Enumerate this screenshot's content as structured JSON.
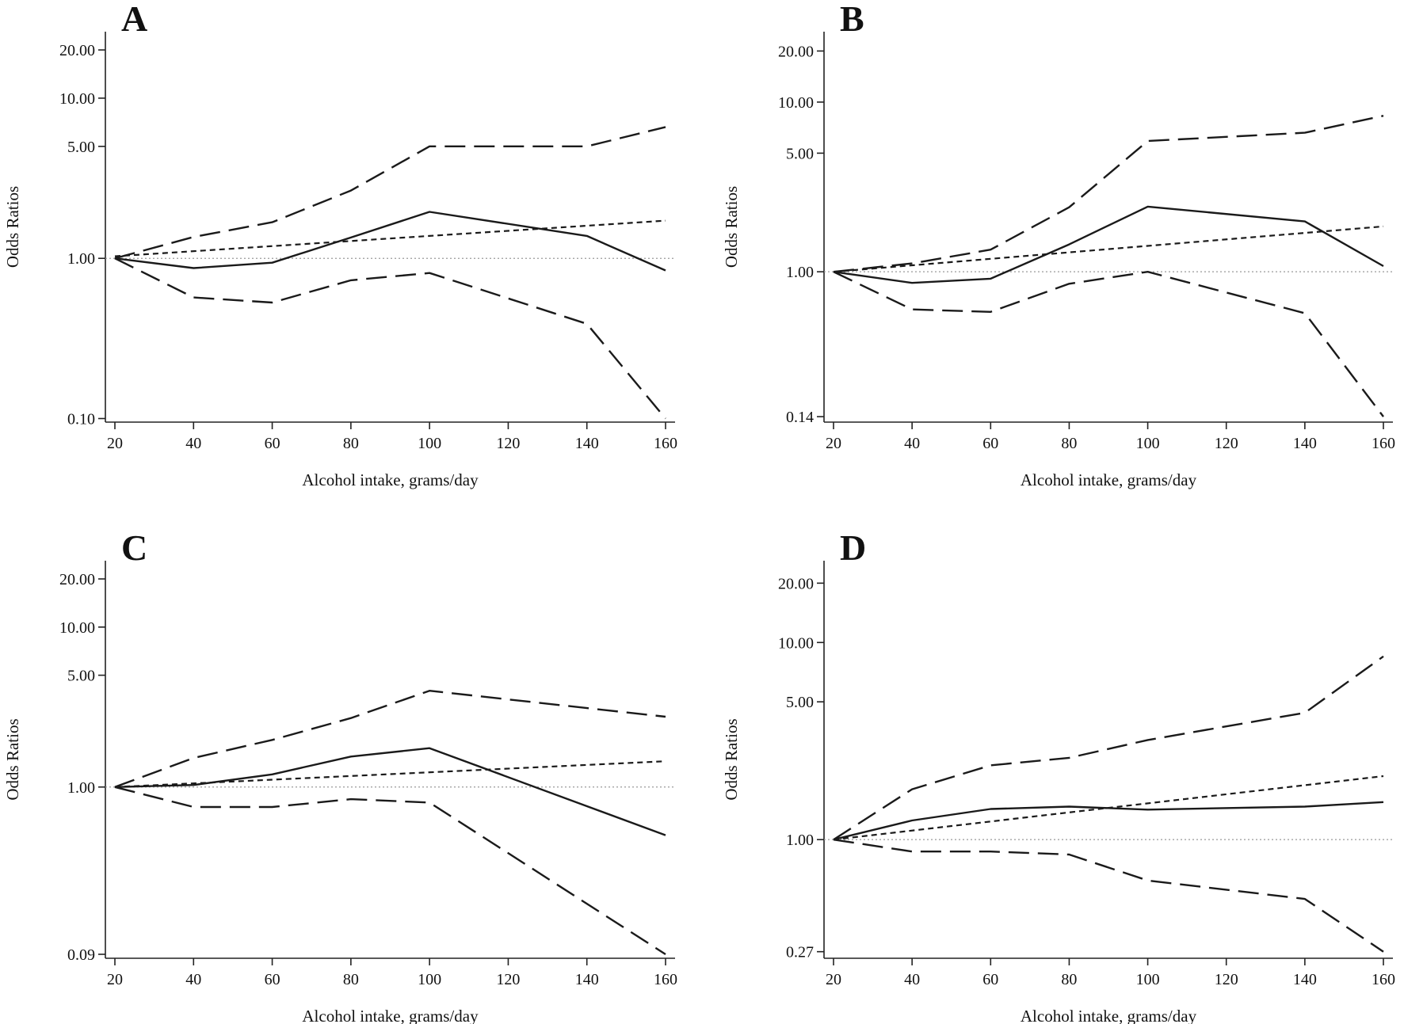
{
  "chart_data": [
    {
      "type": "line",
      "title": "A",
      "xlabel": "Alcohol intake, grams/day",
      "ylabel": "Odds Ratios",
      "y_scale": "log",
      "xlim": [
        20,
        160
      ],
      "ylim": [
        0.095,
        26
      ],
      "x_ticks": [
        20,
        40,
        60,
        80,
        100,
        120,
        140,
        160
      ],
      "y_ticks": [
        0.1,
        1,
        5,
        10,
        20
      ],
      "y_tick_labels": [
        "0.10",
        "1.00",
        "5.00",
        "10.00",
        "20.00"
      ],
      "reference_line": 1.0,
      "series": [
        {
          "style": "solid",
          "x": [
            20,
            40,
            60,
            80,
            100,
            140,
            160
          ],
          "y": [
            1.0,
            0.87,
            0.94,
            1.35,
            1.95,
            1.38,
            0.84
          ]
        },
        {
          "style": "long-dash",
          "x": [
            20,
            40,
            60,
            80,
            100,
            140,
            160
          ],
          "y": [
            1.0,
            1.36,
            1.68,
            2.65,
            5.0,
            5.0,
            6.6
          ]
        },
        {
          "style": "long-dash",
          "x": [
            20,
            40,
            60,
            80,
            100,
            140,
            160
          ],
          "y": [
            1.0,
            0.57,
            0.53,
            0.73,
            0.81,
            0.39,
            0.1
          ]
        },
        {
          "style": "short-dash",
          "x": [
            20,
            160
          ],
          "y": [
            1.03,
            1.72
          ]
        }
      ]
    },
    {
      "type": "line",
      "title": "B",
      "xlabel": "Alcohol intake, grams/day",
      "ylabel": "Odds Ratios",
      "y_scale": "log",
      "xlim": [
        20,
        160
      ],
      "ylim": [
        0.13,
        26
      ],
      "x_ticks": [
        20,
        40,
        60,
        80,
        100,
        120,
        140,
        160
      ],
      "y_ticks": [
        0.14,
        1,
        5,
        10,
        20
      ],
      "y_tick_labels": [
        "0.14",
        "1.00",
        "5.00",
        "10.00",
        "20.00"
      ],
      "reference_line": 1.0,
      "series": [
        {
          "style": "solid",
          "x": [
            20,
            40,
            60,
            80,
            100,
            140,
            160
          ],
          "y": [
            1.0,
            0.86,
            0.91,
            1.45,
            2.42,
            1.98,
            1.08
          ]
        },
        {
          "style": "long-dash",
          "x": [
            20,
            40,
            60,
            80,
            100,
            140,
            160
          ],
          "y": [
            1.0,
            1.12,
            1.35,
            2.4,
            5.9,
            6.6,
            8.3
          ]
        },
        {
          "style": "long-dash",
          "x": [
            20,
            40,
            60,
            80,
            100,
            140,
            160
          ],
          "y": [
            1.0,
            0.6,
            0.58,
            0.85,
            1.0,
            0.57,
            0.14
          ]
        },
        {
          "style": "short-dash",
          "x": [
            20,
            160
          ],
          "y": [
            1.0,
            1.85
          ]
        }
      ]
    },
    {
      "type": "line",
      "title": "C",
      "xlabel": "Alcohol intake, grams/day",
      "ylabel": "Odds Ratios",
      "y_scale": "log",
      "xlim": [
        20,
        160
      ],
      "ylim": [
        0.085,
        26
      ],
      "x_ticks": [
        20,
        40,
        60,
        80,
        100,
        120,
        140,
        160
      ],
      "y_ticks": [
        0.09,
        1,
        5,
        10,
        20
      ],
      "y_tick_labels": [
        "0.09",
        "1.00",
        "5.00",
        "10.00",
        "20.00"
      ],
      "reference_line": 1.0,
      "series": [
        {
          "style": "solid",
          "x": [
            20,
            40,
            60,
            80,
            100,
            160
          ],
          "y": [
            1.0,
            1.03,
            1.2,
            1.55,
            1.75,
            0.5
          ]
        },
        {
          "style": "long-dash",
          "x": [
            20,
            40,
            60,
            80,
            100,
            160
          ],
          "y": [
            1.0,
            1.52,
            1.97,
            2.7,
            4.0,
            2.75
          ]
        },
        {
          "style": "long-dash",
          "x": [
            20,
            40,
            60,
            80,
            100,
            160
          ],
          "y": [
            1.0,
            0.75,
            0.75,
            0.84,
            0.8,
            0.09
          ]
        },
        {
          "style": "short-dash",
          "x": [
            20,
            160
          ],
          "y": [
            1.0,
            1.45
          ]
        }
      ]
    },
    {
      "type": "line",
      "title": "D",
      "xlabel": "Alcohol intake, grams/day",
      "ylabel": "Odds Ratios",
      "y_scale": "log",
      "xlim": [
        20,
        160
      ],
      "ylim": [
        0.25,
        26
      ],
      "x_ticks": [
        20,
        40,
        60,
        80,
        100,
        120,
        140,
        160
      ],
      "y_ticks": [
        0.27,
        1,
        5,
        10,
        20
      ],
      "y_tick_labels": [
        "0.27",
        "1.00",
        "5.00",
        "10.00",
        "20.00"
      ],
      "reference_line": 1.0,
      "series": [
        {
          "style": "solid",
          "x": [
            20,
            40,
            60,
            80,
            100,
            140,
            160
          ],
          "y": [
            1.0,
            1.25,
            1.43,
            1.47,
            1.42,
            1.47,
            1.55
          ]
        },
        {
          "style": "long-dash",
          "x": [
            20,
            40,
            60,
            80,
            100,
            140,
            160
          ],
          "y": [
            1.0,
            1.8,
            2.38,
            2.6,
            3.2,
            4.4,
            8.5
          ]
        },
        {
          "style": "long-dash",
          "x": [
            20,
            40,
            60,
            80,
            100,
            140,
            160
          ],
          "y": [
            1.0,
            0.87,
            0.87,
            0.84,
            0.62,
            0.5,
            0.27
          ]
        },
        {
          "style": "short-dash",
          "x": [
            20,
            160
          ],
          "y": [
            1.0,
            2.1
          ]
        }
      ]
    }
  ]
}
